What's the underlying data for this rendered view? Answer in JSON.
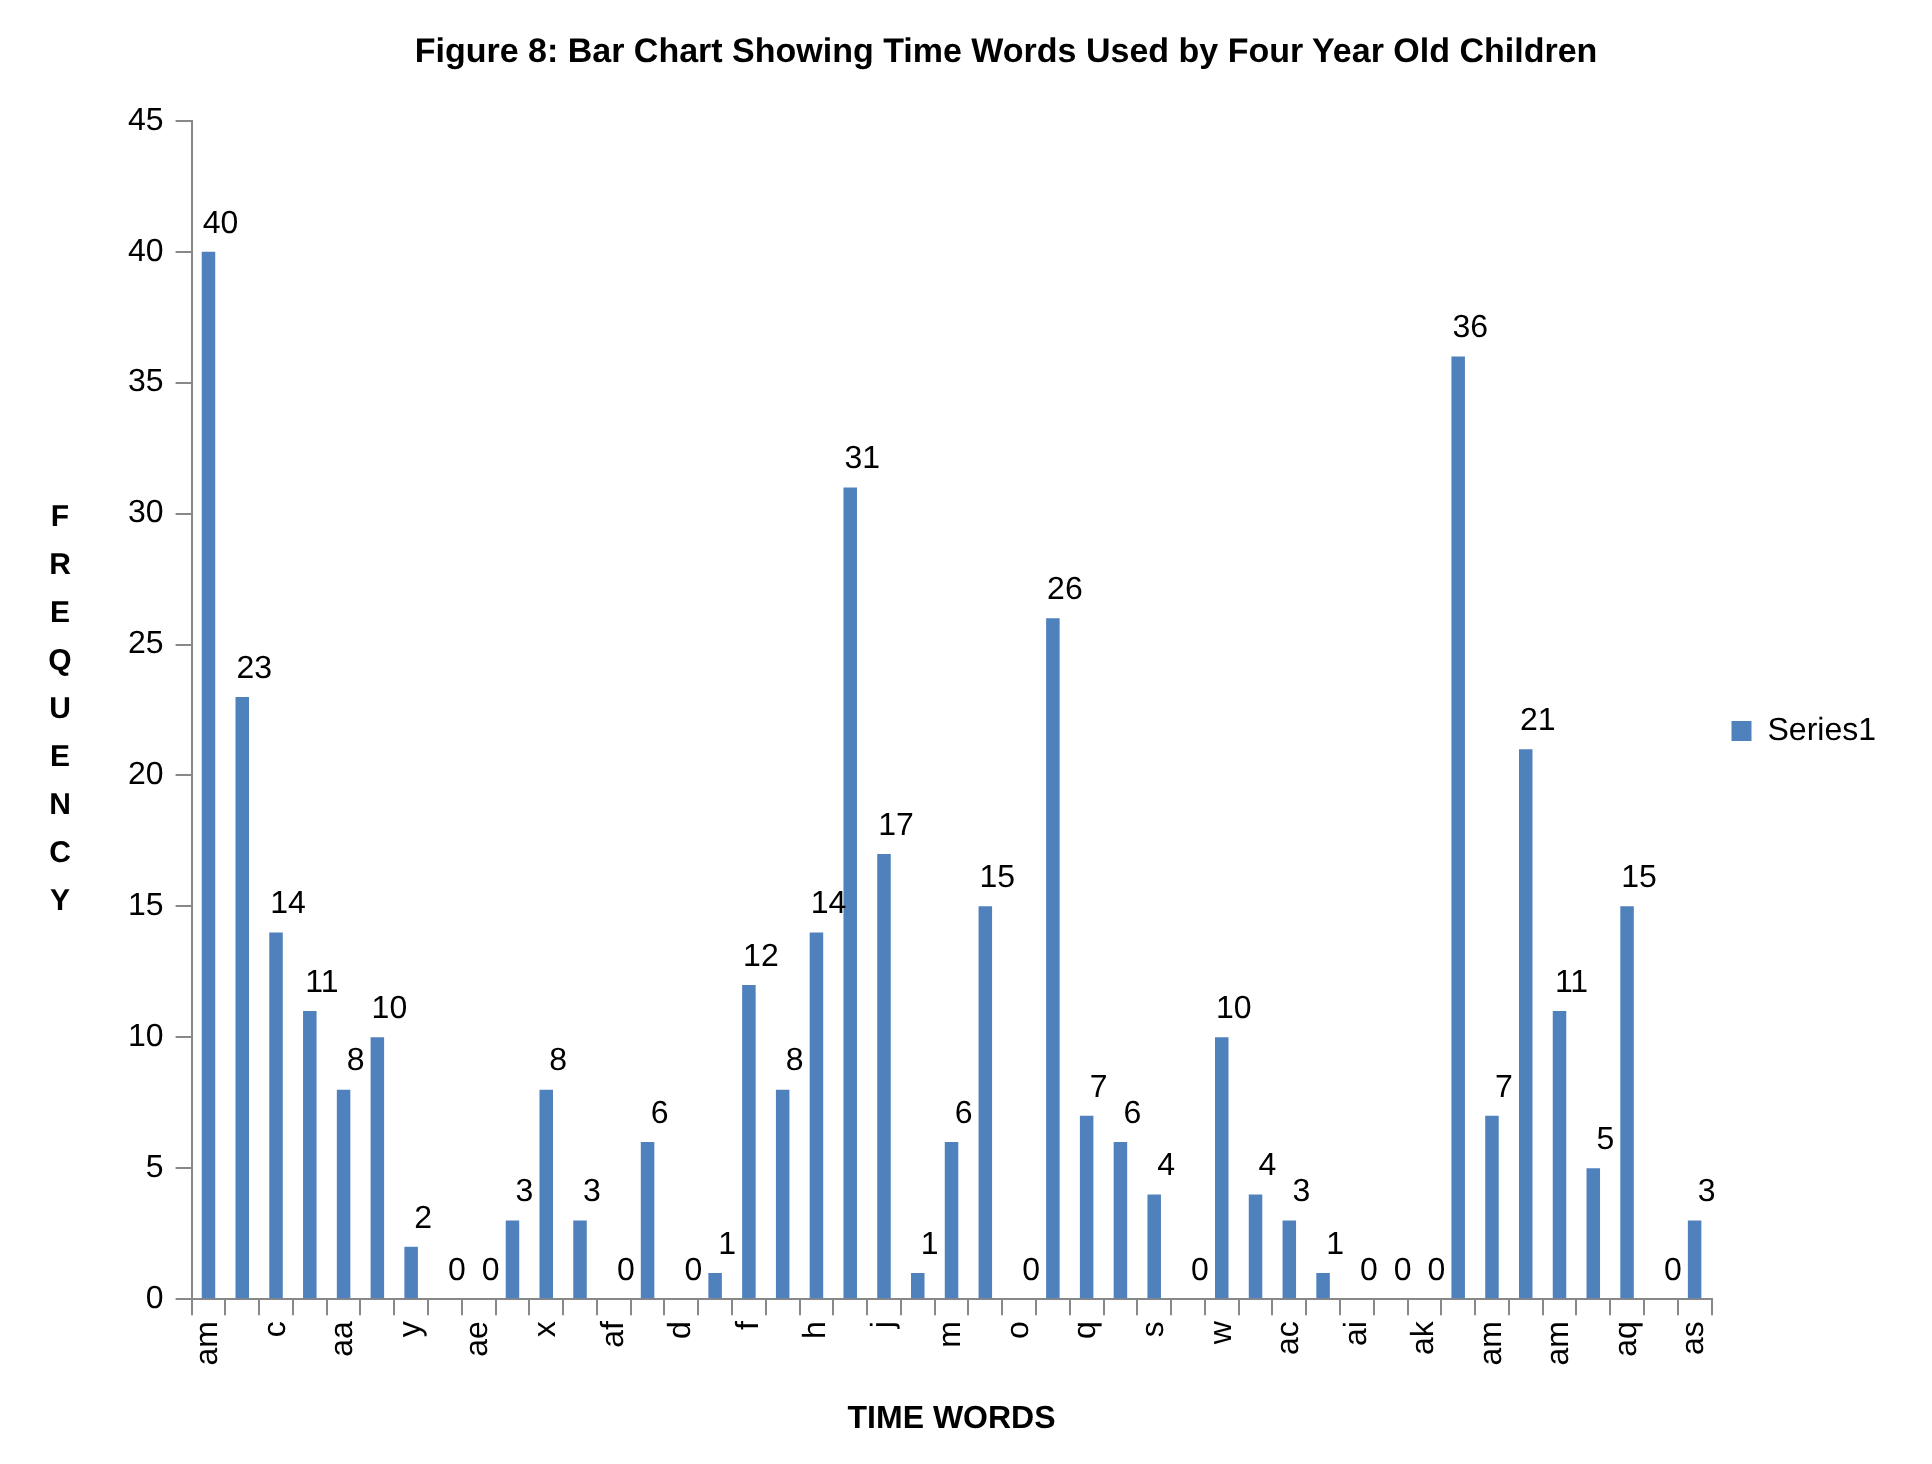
{
  "chart_data": {
    "type": "bar",
    "title": "Figure 8: Bar Chart Showing Time Words Used by Four Year Old Children",
    "xlabel": "TIME WORDS",
    "ylabel": "FREQUENCY",
    "categories": [
      "am",
      null,
      "c",
      null,
      "aa",
      null,
      "y",
      null,
      "ae",
      null,
      "x",
      null,
      "af",
      null,
      "d",
      null,
      "f",
      null,
      "h",
      null,
      "j",
      null,
      "m",
      null,
      "o",
      null,
      "q",
      null,
      "s",
      null,
      "w",
      null,
      "ac",
      null,
      "ai",
      null,
      "ak",
      null,
      "am",
      null,
      "am",
      null,
      "aq",
      null,
      "as"
    ],
    "series": [
      {
        "name": "Series1",
        "color": "#4f81bd",
        "values": [
          40,
          23,
          14,
          11,
          8,
          10,
          2,
          0,
          0,
          3,
          8,
          3,
          0,
          6,
          0,
          1,
          12,
          8,
          14,
          31,
          17,
          1,
          6,
          15,
          0,
          26,
          7,
          6,
          4,
          0,
          10,
          4,
          3,
          1,
          0,
          0,
          0,
          36,
          7,
          21,
          11,
          5,
          15,
          0,
          3
        ]
      }
    ],
    "ylim": [
      0,
      45
    ],
    "yticks": [
      0,
      5,
      10,
      15,
      20,
      25,
      30,
      35,
      40,
      45
    ],
    "data_labels": true,
    "legend": "right",
    "grid": false
  }
}
